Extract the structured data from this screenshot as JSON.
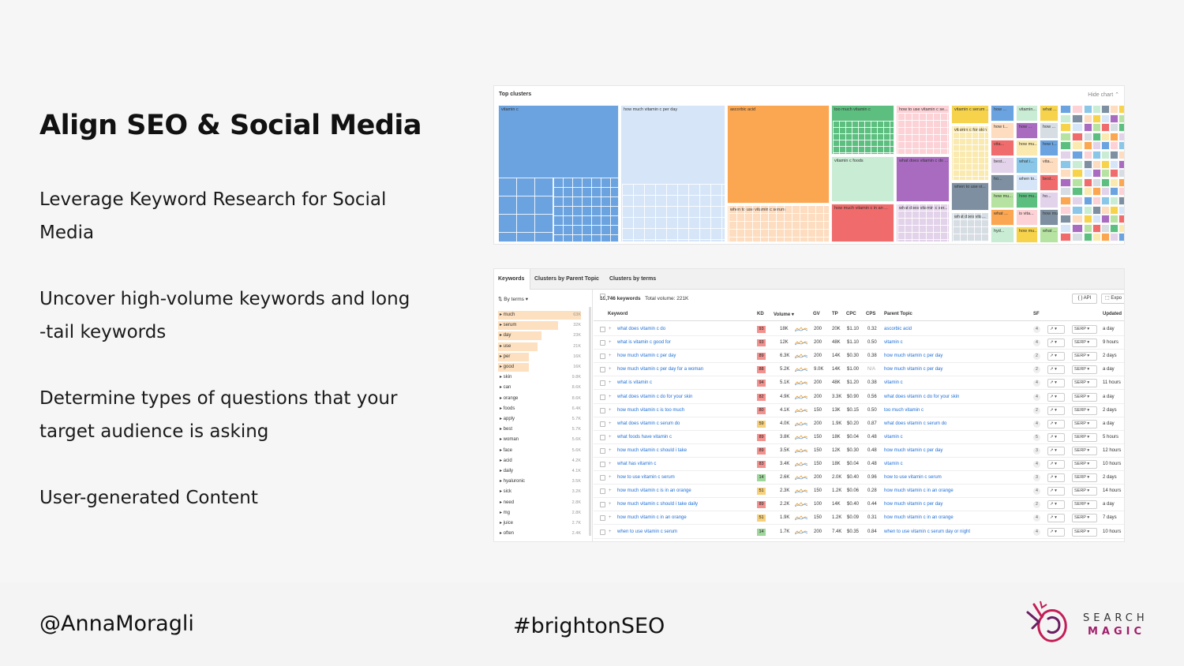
{
  "slide": {
    "title": "Align SEO & Social Media",
    "bullets": [
      "Leverage Keyword Research for Social Media",
      "Uncover high-volume keywords and long -tail keywords",
      "Determine types of questions that your target audience is asking",
      "User-generated Content"
    ]
  },
  "footer": {
    "handle": "@AnnaMoragli",
    "hashtag": "#brightonSEO",
    "logo": {
      "line1": "SEARCH",
      "line2": "MAGIC"
    }
  },
  "treemap": {
    "title": "Top clusters",
    "hide_label": "Hide chart",
    "clusters": [
      {
        "label": "vitamin c",
        "color": "#6aa3e0"
      },
      {
        "label": "how much vitamin c per day",
        "color": "#d6e6f8"
      },
      {
        "label": "ascorbic acid",
        "color": "#fba650"
      },
      {
        "label": "when to use vitamin c serum",
        "color": "#fddcbf"
      },
      {
        "label": "too much vitamin c",
        "color": "#5cbf7f"
      },
      {
        "label": "vitamin c foods",
        "color": "#c9ecd4"
      },
      {
        "label": "how much vitamin c in an ...",
        "color": "#f06b6b"
      },
      {
        "label": "how to use vitamin c se...",
        "color": "#fcd2d6"
      },
      {
        "label": "what does vitamin c do ...",
        "color": "#a96bc0"
      },
      {
        "label": "what does vitamin c ser...",
        "color": "#e3d3ea"
      },
      {
        "label": "vitamin c serum ...",
        "color": "#f6d34b"
      },
      {
        "label": "vitamin c for skin",
        "color": "#faeab0"
      },
      {
        "label": "when to use vi...",
        "color": "#7d8fa0"
      },
      {
        "label": "what does vita...",
        "color": "#d6dde3"
      }
    ],
    "small_labels": [
      "how ...",
      "how t...",
      "vita...",
      "best...",
      "ho...",
      "how mu...",
      "what ...",
      "hyd...",
      "vitamin...",
      "how ...",
      "how mu...",
      "what i...",
      "when to...",
      "how mu...",
      "is vita...",
      "how mu...",
      "what ..."
    ]
  },
  "keywords": {
    "tabs": [
      "Keywords",
      "Clusters by Parent Topic",
      "Clusters by terms"
    ],
    "sidebar_header": "By terms ▾",
    "terms": [
      {
        "term": "much",
        "count": "63K",
        "share": 1.0
      },
      {
        "term": "serum",
        "count": "32K",
        "share": 0.72
      },
      {
        "term": "day",
        "count": "23K",
        "share": 0.52
      },
      {
        "term": "use",
        "count": "21K",
        "share": 0.48
      },
      {
        "term": "per",
        "count": "16K",
        "share": 0.37
      },
      {
        "term": "good",
        "count": "16K",
        "share": 0.37
      },
      {
        "term": "skin",
        "count": "9.8K",
        "share": 0.0
      },
      {
        "term": "can",
        "count": "8.6K",
        "share": 0.0
      },
      {
        "term": "orange",
        "count": "8.6K",
        "share": 0.0
      },
      {
        "term": "foods",
        "count": "6.4K",
        "share": 0.0
      },
      {
        "term": "apply",
        "count": "5.7K",
        "share": 0.0
      },
      {
        "term": "best",
        "count": "5.7K",
        "share": 0.0
      },
      {
        "term": "woman",
        "count": "5.6K",
        "share": 0.0
      },
      {
        "term": "face",
        "count": "5.6K",
        "share": 0.0
      },
      {
        "term": "acid",
        "count": "4.2K",
        "share": 0.0
      },
      {
        "term": "daily",
        "count": "4.1K",
        "share": 0.0
      },
      {
        "term": "hyaluronic",
        "count": "3.5K",
        "share": 0.0
      },
      {
        "term": "sick",
        "count": "3.2K",
        "share": 0.0
      },
      {
        "term": "need",
        "count": "2.8K",
        "share": 0.0
      },
      {
        "term": "mg",
        "count": "2.8K",
        "share": 0.0
      },
      {
        "term": "juice",
        "count": "2.7K",
        "share": 0.0
      },
      {
        "term": "often",
        "count": "2.4K",
        "share": 0.0
      }
    ],
    "summary_count": "10,746 keywords",
    "summary_volume": "Total volume: 221K",
    "api_label": "API",
    "export_label": "Expo",
    "columns": [
      "Keyword",
      "KD",
      "Volume ▾",
      "GV",
      "TP",
      "CPC",
      "CPS",
      "Parent Topic",
      "SF",
      "Updated"
    ],
    "rows": [
      {
        "kw": "what does vitamin c do",
        "kd": "93",
        "kdc": "#f1928f",
        "vol": "18K",
        "gv": "200",
        "tp": "20K",
        "cpc": "$1.10",
        "cps": "0.32",
        "pt": "ascorbic acid",
        "sf": "4",
        "upd": "a day"
      },
      {
        "kw": "what is vitamin c good for",
        "kd": "93",
        "kdc": "#f1928f",
        "vol": "12K",
        "gv": "200",
        "tp": "48K",
        "cpc": "$1.10",
        "cps": "0.50",
        "pt": "vitamin c",
        "sf": "4",
        "upd": "9 hours"
      },
      {
        "kw": "how much vitamin c per day",
        "kd": "89",
        "kdc": "#f1928f",
        "vol": "6.3K",
        "gv": "200",
        "tp": "14K",
        "cpc": "$0.30",
        "cps": "0.38",
        "pt": "how much vitamin c per day",
        "sf": "2",
        "upd": "2 days"
      },
      {
        "kw": "how much vitamin c per day for a woman",
        "kd": "88",
        "kdc": "#f1928f",
        "vol": "5.2K",
        "gv": "9.0K",
        "tp": "14K",
        "cpc": "$1.00",
        "cps": "N/A",
        "pt": "how much vitamin c per day",
        "sf": "2",
        "upd": "a day"
      },
      {
        "kw": "what is vitamin c",
        "kd": "94",
        "kdc": "#f1928f",
        "vol": "5.1K",
        "gv": "200",
        "tp": "48K",
        "cpc": "$1.20",
        "cps": "0.38",
        "pt": "vitamin c",
        "sf": "4",
        "upd": "11 hours"
      },
      {
        "kw": "what does vitamin c do for your skin",
        "kd": "82",
        "kdc": "#f1928f",
        "vol": "4.9K",
        "gv": "200",
        "tp": "3.3K",
        "cpc": "$0.90",
        "cps": "0.56",
        "pt": "what does vitamin c do for your skin",
        "sf": "4",
        "upd": "a day"
      },
      {
        "kw": "how much vitamin c is too much",
        "kd": "80",
        "kdc": "#f1928f",
        "vol": "4.1K",
        "gv": "150",
        "tp": "13K",
        "cpc": "$0.15",
        "cps": "0.50",
        "pt": "too much vitamin c",
        "sf": "2",
        "upd": "2 days"
      },
      {
        "kw": "what does vitamin c serum do",
        "kd": "59",
        "kdc": "#f6d07a",
        "vol": "4.0K",
        "gv": "200",
        "tp": "1.9K",
        "cpc": "$0.20",
        "cps": "0.87",
        "pt": "what does vitamin c serum do",
        "sf": "4",
        "upd": "a day"
      },
      {
        "kw": "what foods have vitamin c",
        "kd": "89",
        "kdc": "#f1928f",
        "vol": "3.8K",
        "gv": "150",
        "tp": "18K",
        "cpc": "$0.04",
        "cps": "0.48",
        "pt": "vitamin c",
        "sf": "5",
        "upd": "5 hours"
      },
      {
        "kw": "how much vitamin c should i take",
        "kd": "89",
        "kdc": "#f1928f",
        "vol": "3.5K",
        "gv": "150",
        "tp": "12K",
        "cpc": "$0.30",
        "cps": "0.48",
        "pt": "how much vitamin c per day",
        "sf": "3",
        "upd": "12 hours"
      },
      {
        "kw": "what has vitamin c",
        "kd": "83",
        "kdc": "#f1928f",
        "vol": "3.4K",
        "gv": "150",
        "tp": "18K",
        "cpc": "$0.04",
        "cps": "0.48",
        "pt": "vitamin c",
        "sf": "4",
        "upd": "10 hours"
      },
      {
        "kw": "how to use vitamin c serum",
        "kd": "14",
        "kdc": "#9ed69b",
        "vol": "2.6K",
        "gv": "200",
        "tp": "2.0K",
        "cpc": "$0.40",
        "cps": "0.96",
        "pt": "how to use vitamin c serum",
        "sf": "3",
        "upd": "2 days"
      },
      {
        "kw": "how much vitamin c is in an orange",
        "kd": "51",
        "kdc": "#f6d07a",
        "vol": "2.3K",
        "gv": "150",
        "tp": "1.2K",
        "cpc": "$0.06",
        "cps": "0.28",
        "pt": "how much vitamin c in an orange",
        "sf": "4",
        "upd": "14 hours"
      },
      {
        "kw": "how much vitamin c should i take daily",
        "kd": "89",
        "kdc": "#f1928f",
        "vol": "2.2K",
        "gv": "100",
        "tp": "14K",
        "cpc": "$0.40",
        "cps": "0.44",
        "pt": "how much vitamin c per day",
        "sf": "2",
        "upd": "a day"
      },
      {
        "kw": "how much vitamin c in an orange",
        "kd": "51",
        "kdc": "#f6d07a",
        "vol": "1.9K",
        "gv": "150",
        "tp": "1.2K",
        "cpc": "$0.09",
        "cps": "0.31",
        "pt": "how much vitamin c in an orange",
        "sf": "4",
        "upd": "7 days"
      },
      {
        "kw": "when to use vitamin c serum",
        "kd": "14",
        "kdc": "#9ed69b",
        "vol": "1.7K",
        "gv": "200",
        "tp": "7.4K",
        "cpc": "$0.35",
        "cps": "0.84",
        "pt": "when to use vitamin c serum day or night",
        "sf": "4",
        "upd": "10 hours"
      }
    ],
    "trend_label": "↗ ▾",
    "serp_label": "SERP ▾"
  }
}
